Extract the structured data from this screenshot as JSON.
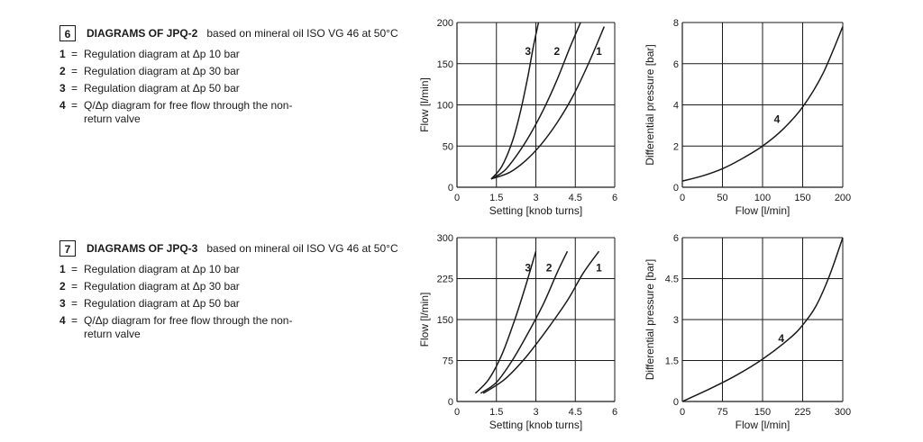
{
  "sections": [
    {
      "number": "6",
      "title": "DIAGRAMS OF JPQ-2",
      "subtitle": "based on mineral oil ISO VG 46 at 50°C",
      "items": [
        {
          "num": "1",
          "eq": "=",
          "text": "Regulation diagram at Δp 10 bar"
        },
        {
          "num": "2",
          "eq": "=",
          "text": "Regulation diagram at Δp 30 bar"
        },
        {
          "num": "3",
          "eq": "=",
          "text": "Regulation diagram at Δp 50 bar"
        },
        {
          "num": "4",
          "eq": "=",
          "text": "Q/Δp diagram for free flow through the non-return valve"
        }
      ]
    },
    {
      "number": "7",
      "title": "DIAGRAMS OF JPQ-3",
      "subtitle": "based on mineral oil ISO VG 46 at 50°C",
      "items": [
        {
          "num": "1",
          "eq": "=",
          "text": "Regulation diagram at Δp 10 bar"
        },
        {
          "num": "2",
          "eq": "=",
          "text": "Regulation diagram at Δp 30 bar"
        },
        {
          "num": "3",
          "eq": "=",
          "text": "Regulation diagram at Δp 50 bar"
        },
        {
          "num": "4",
          "eq": "=",
          "text": "Q/Δp diagram for free flow through the non-return valve"
        }
      ]
    }
  ],
  "chart_data": [
    {
      "type": "line",
      "xlabel": "Setting [knob turns]",
      "ylabel": "Flow [l/min]",
      "xlim": [
        0,
        6
      ],
      "ylim": [
        0,
        200
      ],
      "xticks": [
        "0",
        "1.5",
        "3",
        "4.5",
        "6"
      ],
      "yticks": [
        "0",
        "50",
        "100",
        "150",
        "200"
      ],
      "xtick_values": [
        0,
        1.5,
        3,
        4.5,
        6
      ],
      "ytick_values": [
        0,
        50,
        100,
        150,
        200
      ],
      "grid": true,
      "series": [
        {
          "name": "3",
          "x": [
            1.3,
            1.7,
            2.1,
            2.4,
            2.7,
            2.9,
            3.1
          ],
          "y": [
            10,
            25,
            55,
            90,
            135,
            170,
            200
          ]
        },
        {
          "name": "2",
          "x": [
            1.3,
            1.8,
            2.3,
            2.8,
            3.3,
            3.8,
            4.3,
            4.7
          ],
          "y": [
            10,
            20,
            40,
            65,
            95,
            130,
            170,
            200
          ]
        },
        {
          "name": "1",
          "x": [
            1.3,
            2.0,
            2.6,
            3.2,
            3.8,
            4.4,
            5.0,
            5.6
          ],
          "y": [
            10,
            18,
            32,
            52,
            78,
            110,
            150,
            195
          ]
        }
      ],
      "annotations": [
        {
          "text": "3",
          "x": 2.7,
          "y": 165
        },
        {
          "text": "2",
          "x": 3.8,
          "y": 165
        },
        {
          "text": "1",
          "x": 5.4,
          "y": 165
        }
      ]
    },
    {
      "type": "line",
      "xlabel": "Flow [l/min]",
      "ylabel": "Differential pressure [bar]",
      "xlim": [
        0,
        200
      ],
      "ylim": [
        0,
        8
      ],
      "xticks": [
        "0",
        "50",
        "100",
        "150",
        "200"
      ],
      "yticks": [
        "0",
        "2",
        "4",
        "6",
        "8"
      ],
      "xtick_values": [
        0,
        50,
        100,
        150,
        200
      ],
      "ytick_values": [
        0,
        2,
        4,
        6,
        8
      ],
      "grid": true,
      "series": [
        {
          "name": "4",
          "x": [
            0,
            25,
            50,
            75,
            100,
            125,
            150,
            175,
            200
          ],
          "y": [
            0.3,
            0.55,
            0.9,
            1.4,
            2.0,
            2.8,
            3.9,
            5.5,
            7.8
          ]
        }
      ],
      "annotations": [
        {
          "text": "4",
          "x": 118,
          "y": 3.3
        }
      ]
    },
    {
      "type": "line",
      "xlabel": "Setting [knob turns]",
      "ylabel": "Flow [l/min]",
      "xlim": [
        0,
        6
      ],
      "ylim": [
        0,
        300
      ],
      "xticks": [
        "0",
        "1.5",
        "3",
        "4.5",
        "6"
      ],
      "yticks": [
        "0",
        "75",
        "150",
        "225",
        "300"
      ],
      "xtick_values": [
        0,
        1.5,
        3,
        4.5,
        6
      ],
      "ytick_values": [
        0,
        75,
        150,
        225,
        300
      ],
      "grid": true,
      "series": [
        {
          "name": "3",
          "x": [
            0.7,
            1.2,
            1.7,
            2.2,
            2.6,
            3.0
          ],
          "y": [
            15,
            40,
            85,
            150,
            210,
            275
          ]
        },
        {
          "name": "2",
          "x": [
            0.9,
            1.5,
            2.1,
            2.7,
            3.3,
            3.8,
            4.2
          ],
          "y": [
            15,
            35,
            75,
            125,
            180,
            235,
            275
          ]
        },
        {
          "name": "1",
          "x": [
            1.0,
            1.8,
            2.6,
            3.4,
            4.2,
            4.8,
            5.4
          ],
          "y": [
            15,
            40,
            80,
            130,
            185,
            235,
            275
          ]
        }
      ],
      "annotations": [
        {
          "text": "3",
          "x": 2.7,
          "y": 245
        },
        {
          "text": "2",
          "x": 3.5,
          "y": 245
        },
        {
          "text": "1",
          "x": 5.4,
          "y": 245
        }
      ]
    },
    {
      "type": "line",
      "xlabel": "Flow [l/min]",
      "ylabel": "Differential pressure [bar]",
      "xlim": [
        0,
        300
      ],
      "ylim": [
        0,
        6
      ],
      "xticks": [
        "0",
        "75",
        "150",
        "225",
        "300"
      ],
      "yticks": [
        "0",
        "1.5",
        "3",
        "4.5",
        "6"
      ],
      "xtick_values": [
        0,
        75,
        150,
        225,
        300
      ],
      "ytick_values": [
        0,
        1.5,
        3,
        4.5,
        6
      ],
      "grid": true,
      "series": [
        {
          "name": "4",
          "x": [
            0,
            50,
            100,
            150,
            200,
            225,
            250,
            275,
            300
          ],
          "y": [
            0,
            0.45,
            0.95,
            1.55,
            2.3,
            2.8,
            3.5,
            4.6,
            6.0
          ]
        }
      ],
      "annotations": [
        {
          "text": "4",
          "x": 185,
          "y": 2.3
        }
      ]
    }
  ]
}
